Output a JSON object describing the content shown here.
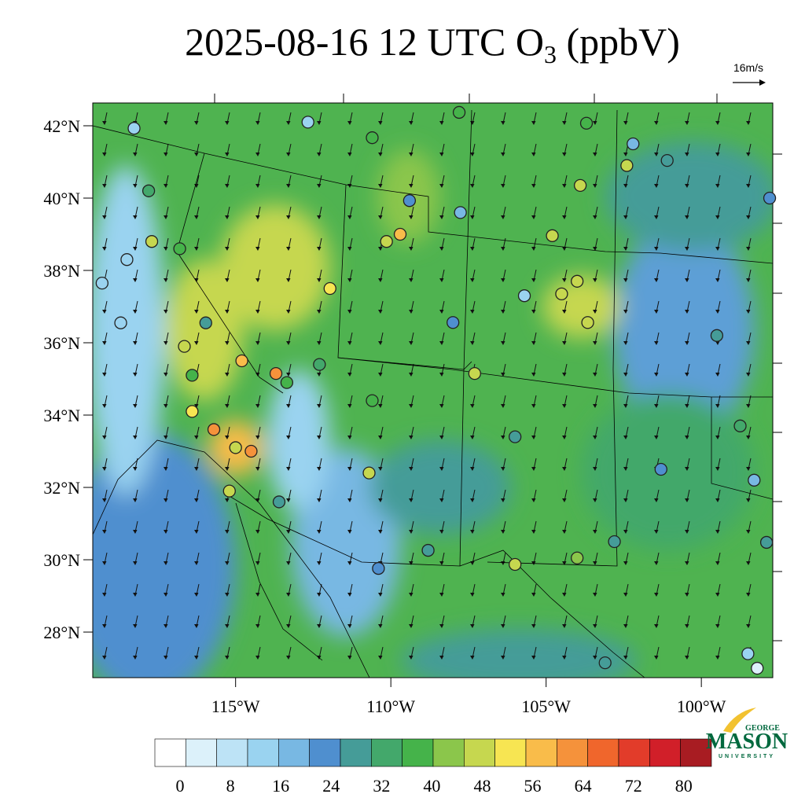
{
  "title": {
    "main": "2025-08-16 12 UTC O",
    "subscript": "3",
    "suffix": " (ppbV)"
  },
  "wind_reference": "16m/s",
  "map": {
    "lon_range": [
      -119.6,
      -97.7
    ],
    "lat_range": [
      26.74,
      42.63
    ],
    "lat_ticks": [
      {
        "value": 42,
        "label": "42°N"
      },
      {
        "value": 40,
        "label": "40°N"
      },
      {
        "value": 38,
        "label": "38°N"
      },
      {
        "value": 36,
        "label": "36°N"
      },
      {
        "value": 34,
        "label": "34°N"
      },
      {
        "value": 32,
        "label": "32°N"
      },
      {
        "value": 30,
        "label": "30°N"
      },
      {
        "value": 28,
        "label": "28°N"
      }
    ],
    "lon_ticks": [
      {
        "value": -115,
        "label": "115°W"
      },
      {
        "value": -110,
        "label": "110°W"
      },
      {
        "value": -105,
        "label": "105°W"
      },
      {
        "value": -100,
        "label": "100°W"
      }
    ]
  },
  "colorbar": {
    "range": [
      -4,
      84.4
    ],
    "ticks": [
      0,
      8,
      16,
      24,
      32,
      40,
      48,
      56,
      64,
      72,
      80
    ],
    "colors": [
      "#ffffff",
      "#dcf1fa",
      "#bde3f6",
      "#9ad3f0",
      "#78b8e3",
      "#4f8fcf",
      "#459c98",
      "#43a86b",
      "#45b34a",
      "#8bc64b",
      "#c6d74f",
      "#f7e552",
      "#f9bc4a",
      "#f5923b",
      "#f0662c",
      "#e23c2a",
      "#d11f29",
      "#a81c22"
    ]
  },
  "stations": [
    {
      "lon": -118.27,
      "lat": 41.93,
      "value": 12
    },
    {
      "lon": -112.67,
      "lat": 42.1,
      "value": 12
    },
    {
      "lon": -117.8,
      "lat": 40.2,
      "value": 34
    },
    {
      "lon": -117.7,
      "lat": 38.8,
      "value": 46
    },
    {
      "lon": -116.8,
      "lat": 38.6,
      "value": 36
    },
    {
      "lon": -118.5,
      "lat": 38.3,
      "value": 14
    },
    {
      "lon": -119.3,
      "lat": 37.65,
      "value": 12
    },
    {
      "lon": -118.7,
      "lat": 36.55,
      "value": 14
    },
    {
      "lon": -115.96,
      "lat": 36.55,
      "value": 28
    },
    {
      "lon": -116.65,
      "lat": 35.9,
      "value": 46
    },
    {
      "lon": -116.4,
      "lat": 35.1,
      "value": 36
    },
    {
      "lon": -116.4,
      "lat": 34.1,
      "value": 52
    },
    {
      "lon": -115.7,
      "lat": 33.6,
      "value": 62
    },
    {
      "lon": -115.0,
      "lat": 33.1,
      "value": 46
    },
    {
      "lon": -114.5,
      "lat": 33.0,
      "value": 60
    },
    {
      "lon": -115.2,
      "lat": 31.9,
      "value": 46
    },
    {
      "lon": -113.6,
      "lat": 31.6,
      "value": 28
    },
    {
      "lon": -114.8,
      "lat": 35.5,
      "value": 56
    },
    {
      "lon": -113.7,
      "lat": 35.15,
      "value": 62
    },
    {
      "lon": -113.35,
      "lat": 34.9,
      "value": 40
    },
    {
      "lon": -111.96,
      "lat": 37.5,
      "value": 52
    },
    {
      "lon": -112.3,
      "lat": 35.4,
      "value": 34
    },
    {
      "lon": -110.6,
      "lat": 34.4,
      "value": 40
    },
    {
      "lon": -110.7,
      "lat": 32.4,
      "value": 48
    },
    {
      "lon": -110.4,
      "lat": 29.76,
      "value": 22
    },
    {
      "lon": -110.6,
      "lat": 41.67,
      "value": 38
    },
    {
      "lon": -109.7,
      "lat": 39.0,
      "value": 56
    },
    {
      "lon": -110.14,
      "lat": 38.8,
      "value": 46
    },
    {
      "lon": -109.4,
      "lat": 39.93,
      "value": 22
    },
    {
      "lon": -107.8,
      "lat": 42.37,
      "value": 36
    },
    {
      "lon": -107.76,
      "lat": 39.6,
      "value": 16
    },
    {
      "lon": -108.0,
      "lat": 36.56,
      "value": 22
    },
    {
      "lon": -107.3,
      "lat": 35.15,
      "value": 46
    },
    {
      "lon": -105.7,
      "lat": 37.3,
      "value": 12
    },
    {
      "lon": -104.8,
      "lat": 38.96,
      "value": 48
    },
    {
      "lon": -103.9,
      "lat": 40.35,
      "value": 48
    },
    {
      "lon": -103.7,
      "lat": 42.07,
      "value": 38
    },
    {
      "lon": -102.4,
      "lat": 40.9,
      "value": 46
    },
    {
      "lon": -102.2,
      "lat": 41.5,
      "value": 16
    },
    {
      "lon": -101.1,
      "lat": 41.04,
      "value": 28
    },
    {
      "lon": -97.8,
      "lat": 40.0,
      "value": 24
    },
    {
      "lon": -99.5,
      "lat": 36.2,
      "value": 28
    },
    {
      "lon": -98.75,
      "lat": 33.7,
      "value": 34
    },
    {
      "lon": -98.3,
      "lat": 32.2,
      "value": 16
    },
    {
      "lon": -101.3,
      "lat": 32.5,
      "value": 22
    },
    {
      "lon": -102.8,
      "lat": 30.5,
      "value": 28
    },
    {
      "lon": -104.0,
      "lat": 30.05,
      "value": 42
    },
    {
      "lon": -106.0,
      "lat": 29.87,
      "value": 48
    },
    {
      "lon": -106.0,
      "lat": 33.4,
      "value": 28
    },
    {
      "lon": -108.8,
      "lat": 30.26,
      "value": 28
    },
    {
      "lon": -103.1,
      "lat": 27.15,
      "value": 28
    },
    {
      "lon": -103.66,
      "lat": 36.56,
      "value": 46
    },
    {
      "lon": -104.0,
      "lat": 37.7,
      "value": 46
    },
    {
      "lon": -104.5,
      "lat": 37.35,
      "value": 48
    },
    {
      "lon": -98.5,
      "lat": 27.4,
      "value": 12
    },
    {
      "lon": -98.2,
      "lat": 27.0,
      "value": 2
    },
    {
      "lon": -97.9,
      "lat": 30.48,
      "value": 28
    }
  ],
  "logo": {
    "top": "GEORGE",
    "name": "MASON",
    "bottom": "UNIVERSITY"
  }
}
